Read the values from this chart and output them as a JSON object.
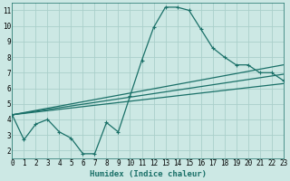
{
  "background_color": "#cce8e4",
  "grid_color": "#aacfca",
  "line_color": "#1a7068",
  "xlabel": "Humidex (Indice chaleur)",
  "xlim": [
    0,
    23
  ],
  "ylim": [
    1.5,
    11.5
  ],
  "xticks": [
    0,
    1,
    2,
    3,
    4,
    5,
    6,
    7,
    8,
    9,
    10,
    11,
    12,
    13,
    14,
    15,
    16,
    17,
    18,
    19,
    20,
    21,
    22,
    23
  ],
  "yticks": [
    2,
    3,
    4,
    5,
    6,
    7,
    8,
    9,
    10,
    11
  ],
  "series_main": {
    "x": [
      0,
      1,
      2,
      3,
      4,
      5,
      6,
      7,
      8,
      9,
      10,
      11,
      12,
      13,
      14,
      15,
      16,
      17,
      18,
      19,
      20,
      21,
      22,
      23
    ],
    "y": [
      4.3,
      2.7,
      3.7,
      4.0,
      3.2,
      2.8,
      1.8,
      1.8,
      3.8,
      3.2,
      5.5,
      7.8,
      9.9,
      11.2,
      11.2,
      11.0,
      9.8,
      8.6,
      8.0,
      7.5,
      7.5,
      7.0,
      7.0,
      6.5
    ]
  },
  "trend_lines": [
    {
      "x": [
        0,
        23
      ],
      "y": [
        4.3,
        7.5
      ]
    },
    {
      "x": [
        0,
        23
      ],
      "y": [
        4.3,
        6.9
      ]
    },
    {
      "x": [
        0,
        23
      ],
      "y": [
        4.3,
        6.3
      ]
    }
  ],
  "linewidth": 0.9,
  "markersize": 2.5,
  "tick_fontsize": 5.5,
  "xlabel_fontsize": 6.5
}
